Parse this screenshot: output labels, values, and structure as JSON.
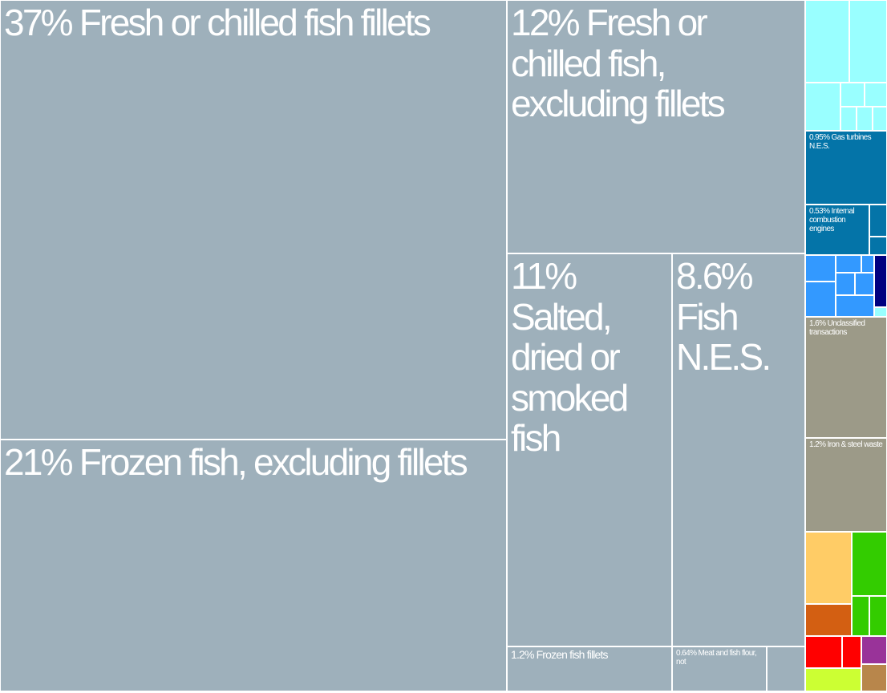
{
  "chart_data": {
    "type": "treemap",
    "tiles": [
      {
        "label": "37% Fresh or chilled fish fillets",
        "value": 37,
        "color": "#9eb0bb"
      },
      {
        "label": "21% Frozen fish, excluding fillets",
        "value": 21,
        "color": "#9eb0bb"
      },
      {
        "label": "12% Fresh or chilled fish, excluding fillets",
        "value": 12,
        "color": "#9eb0bb"
      },
      {
        "label": "11% Salted, dried or smoked fish",
        "value": 11,
        "color": "#9eb0bb"
      },
      {
        "label": "8.6% Fish N.E.S.",
        "value": 8.6,
        "color": "#9eb0bb"
      },
      {
        "label": "1.2% Frozen fish fillets",
        "value": 1.2,
        "color": "#9eb0bb"
      },
      {
        "label": "0.64% Meat and fish flour, not",
        "value": 0.64,
        "color": "#9eb0bb"
      },
      {
        "label": "0.95% Gas turbines N.E.S.",
        "value": 0.95,
        "color": "#0474a8"
      },
      {
        "label": "0.53% Internal combustion engines",
        "value": 0.53,
        "color": "#0474a8"
      },
      {
        "label": "1.6% Unclassified transactions",
        "value": 1.6,
        "color": "#9c9a88"
      },
      {
        "label": "1.2% Iron & steel waste",
        "value": 1.2,
        "color": "#9c9a88"
      }
    ]
  }
}
